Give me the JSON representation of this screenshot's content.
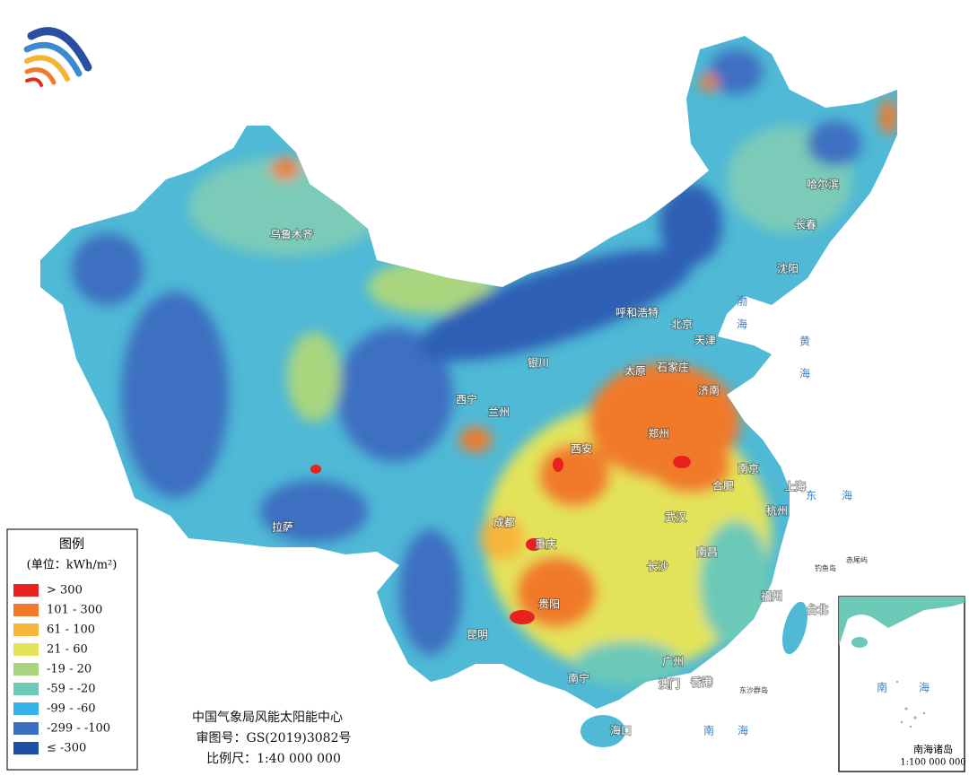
{
  "legend": {
    "title": "图例",
    "unit": "(单位：kWh/m²)",
    "items": [
      {
        "label": "> 300",
        "color": "#e8231f"
      },
      {
        "label": "101 - 300",
        "color": "#f07a2a"
      },
      {
        "label": "61 - 100",
        "color": "#f6b63a"
      },
      {
        "label": "21 - 60",
        "color": "#e3e35a"
      },
      {
        "label": "-19 - 20",
        "color": "#a9d57f"
      },
      {
        "label": "-59 - -20",
        "color": "#6cc9b7"
      },
      {
        "label": "-99 - -60",
        "color": "#36b3e6"
      },
      {
        "label": "-299 - -100",
        "color": "#3d6fc1"
      },
      {
        "label": "≤ -300",
        "color": "#1f4fa3"
      }
    ]
  },
  "cities": [
    "乌鲁木齐",
    "拉萨",
    "西宁",
    "兰州",
    "银川",
    "呼和浩特",
    "北京",
    "天津",
    "石家庄",
    "太原",
    "济南",
    "郑州",
    "西安",
    "南京",
    "合肥",
    "上海",
    "杭州",
    "武汉",
    "成都",
    "重庆",
    "长沙",
    "南昌",
    "贵阳",
    "福州",
    "台北",
    "昆明",
    "南宁",
    "广州",
    "澳门",
    "香港",
    "海口",
    "哈尔滨",
    "长春",
    "沈阳"
  ],
  "seas": [
    "渤海",
    "黄海",
    "东海",
    "南海"
  ],
  "islands": [
    "钓鱼岛",
    "赤尾屿",
    "东沙群岛"
  ],
  "footer": {
    "org": "中国气象局风能太阳能中心",
    "approval": "审图号：GS(2019)3082号",
    "scale": "比例尺：1:40 000 000"
  },
  "inset": {
    "sea": [
      "南",
      "海"
    ],
    "title": "南海诸岛",
    "scale": "1:100 000 000"
  }
}
